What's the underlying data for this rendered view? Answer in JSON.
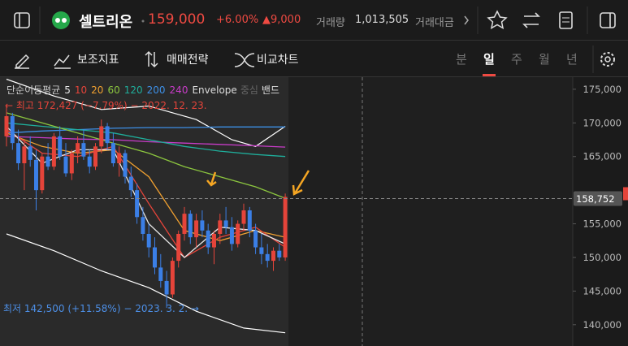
{
  "header": {
    "name": "셀트리온",
    "price": "159,000",
    "change_pct": "+6.00%",
    "change": "▲9,000",
    "volume_label": "거래량",
    "volume": "1,013,505",
    "amount_label": "거래대금"
  },
  "toolbar": {
    "indicators": "보조지표",
    "strategy": "매매전략",
    "compare": "비교차트",
    "periods": [
      "분",
      "일",
      "주",
      "월",
      "년"
    ],
    "selected_period": 1
  },
  "chart_data": {
    "type": "candlestick",
    "up_color": "#e5443a",
    "down_color": "#3b7fe6",
    "open": [
      168000,
      171000,
      167000,
      164000,
      166500,
      164500,
      160000,
      165000,
      163500,
      168000,
      165000,
      162500,
      165500,
      167000,
      165000,
      163500,
      166500,
      169500,
      167000,
      164000,
      165500,
      162000,
      160000,
      156000,
      153500,
      151500,
      148500,
      146500,
      144500,
      149500,
      153500,
      156500,
      153000,
      155500,
      154000,
      151500,
      153500,
      155500,
      154500,
      152000,
      155000,
      157000,
      154000,
      151500,
      150500,
      149500,
      151000,
      150000
    ],
    "high": [
      172427,
      171500,
      169000,
      167500,
      168000,
      166000,
      165500,
      167000,
      168500,
      169500,
      167000,
      166000,
      168000,
      169000,
      166000,
      167000,
      170500,
      170000,
      168500,
      166500,
      166000,
      163500,
      161000,
      157500,
      155000,
      153000,
      150500,
      148000,
      150000,
      154000,
      157500,
      157000,
      156500,
      157000,
      155000,
      154000,
      156500,
      157500,
      156000,
      155500,
      158000,
      157500,
      155000,
      153500,
      152000,
      151500,
      152000,
      159500
    ],
    "low": [
      166500,
      166000,
      163000,
      160000,
      163500,
      157000,
      159500,
      163000,
      163000,
      164500,
      162000,
      161500,
      164000,
      164500,
      162500,
      163000,
      165500,
      166000,
      163500,
      162000,
      161000,
      159000,
      155000,
      152500,
      150000,
      147500,
      145500,
      142500,
      144000,
      148500,
      152500,
      152000,
      151500,
      153000,
      150500,
      149000,
      152000,
      153500,
      151000,
      151500,
      154000,
      153000,
      150500,
      149000,
      148500,
      148000,
      149500,
      149500
    ],
    "close": [
      171000,
      167000,
      164000,
      166500,
      164500,
      160000,
      165000,
      163500,
      168000,
      165000,
      162500,
      165500,
      167000,
      165000,
      163500,
      166500,
      169500,
      167000,
      164000,
      165500,
      162000,
      160000,
      156000,
      153500,
      151500,
      148500,
      146500,
      144500,
      149500,
      153500,
      156500,
      153000,
      155500,
      154000,
      151500,
      153500,
      155500,
      154500,
      152000,
      155000,
      157000,
      154000,
      151500,
      150500,
      149500,
      151000,
      150000,
      159000
    ],
    "legend_title": "단순이동평균",
    "series": [
      {
        "name": "5",
        "color": "#e8e8e8",
        "x": [
          0,
          6,
          12,
          18,
          24,
          30,
          36,
          42,
          47
        ],
        "values": [
          169500,
          164000,
          166000,
          166000,
          155000,
          150000,
          154500,
          154000,
          152000
        ]
      },
      {
        "name": "10",
        "color": "#e5443a",
        "x": [
          0,
          6,
          12,
          18,
          24,
          30,
          36,
          42,
          47
        ],
        "values": [
          169000,
          165500,
          165000,
          166500,
          158000,
          150000,
          153000,
          154500,
          151500
        ]
      },
      {
        "name": "20",
        "color": "#f0a030",
        "x": [
          0,
          6,
          12,
          18,
          24,
          30,
          36,
          42,
          47
        ],
        "values": [
          168500,
          166500,
          165500,
          166000,
          162000,
          154000,
          152500,
          154000,
          153000
        ]
      },
      {
        "name": "60",
        "color": "#8cc63f",
        "x": [
          0,
          6,
          12,
          18,
          24,
          30,
          36,
          42,
          47
        ],
        "values": [
          171500,
          170000,
          168500,
          167000,
          165500,
          163500,
          162000,
          160500,
          158800
        ]
      },
      {
        "name": "120",
        "color": "#1fae9b",
        "x": [
          0,
          6,
          12,
          18,
          24,
          30,
          36,
          42,
          47
        ],
        "values": [
          170000,
          169500,
          169000,
          168500,
          167500,
          166500,
          165800,
          165300,
          165000
        ]
      },
      {
        "name": "200",
        "color": "#3d8fe6",
        "x": [
          0,
          6,
          12,
          18,
          24,
          30,
          36,
          42,
          47
        ],
        "values": [
          168500,
          168800,
          169000,
          169200,
          169300,
          169300,
          169400,
          169400,
          169400
        ]
      },
      {
        "name": "240",
        "color": "#c83cc8",
        "x": [
          0,
          6,
          12,
          18,
          24,
          30,
          36,
          42,
          47
        ],
        "values": [
          168000,
          167800,
          167600,
          167500,
          167200,
          167000,
          166800,
          166600,
          166400
        ]
      }
    ],
    "envelope": {
      "name": "Envelope",
      "center_label": "중심",
      "band_label": "밴드",
      "color": "#ffffff",
      "upper": {
        "x": [
          0,
          8,
          16,
          24,
          32,
          38,
          42,
          47
        ],
        "values": [
          176500,
          174000,
          172000,
          172500,
          170500,
          167500,
          166500,
          169500
        ]
      },
      "lower": {
        "x": [
          0,
          8,
          16,
          24,
          32,
          40,
          47
        ],
        "values": [
          153500,
          151000,
          148000,
          145500,
          142000,
          139500,
          138800
        ]
      }
    },
    "annotations": {
      "high": "← 최고 172,427 (−7.79%) − 2022. 12. 23.",
      "low": "최저 142,500 (+11.58%) − 2023. 3. 2. →"
    },
    "crosshair": {
      "value": 158752,
      "label": "158,752"
    },
    "ylim": [
      137800,
      176800
    ],
    "yticks": [
      {
        "value": 140000,
        "label": "140,000"
      },
      {
        "value": 145000,
        "label": "145,000"
      },
      {
        "value": 150000,
        "label": "150,000"
      },
      {
        "value": 155000,
        "label": "155,000"
      },
      {
        "value": 165000,
        "label": "165,000"
      },
      {
        "value": 170000,
        "label": "170,000"
      },
      {
        "value": 175000,
        "label": "175,000"
      }
    ]
  }
}
